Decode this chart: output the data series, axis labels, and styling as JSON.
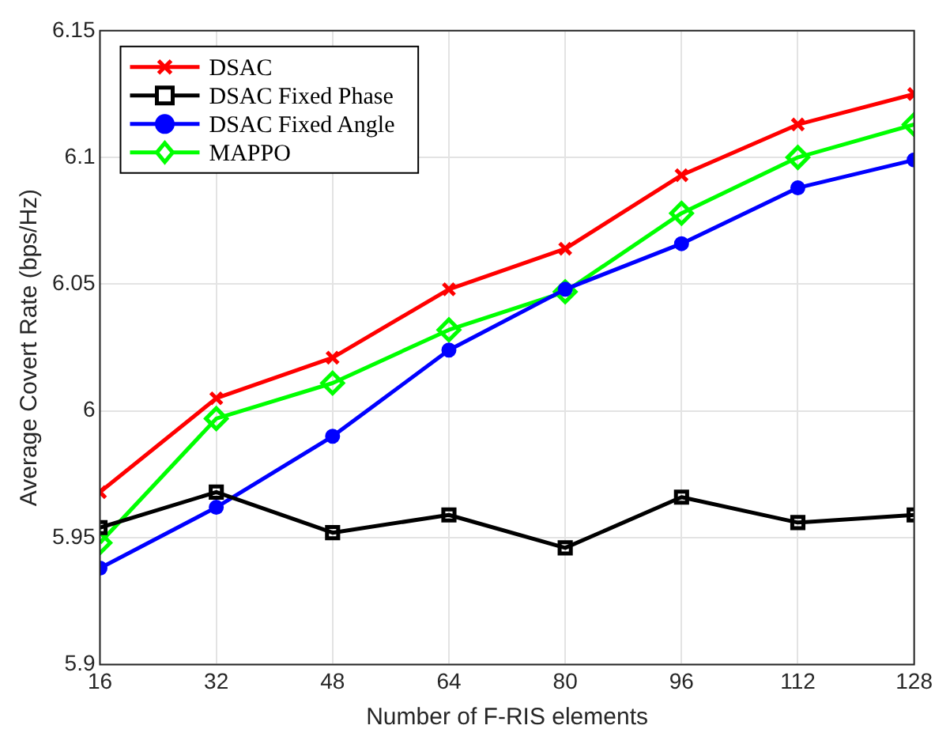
{
  "chart_data": {
    "type": "line",
    "xlabel": "Number of F-RIS elements",
    "ylabel": "Average Covert Rate (bps/Hz)",
    "x": [
      16,
      32,
      48,
      64,
      80,
      96,
      112,
      128
    ],
    "xlim": [
      16,
      128
    ],
    "xticks": [
      16,
      32,
      48,
      64,
      80,
      96,
      112,
      128
    ],
    "ylim": [
      5.9,
      6.15
    ],
    "yticks": [
      5.9,
      5.95,
      6,
      6.05,
      6.1,
      6.15
    ],
    "grid": true,
    "legend": "top left",
    "series": [
      {
        "name": "DSAC",
        "color": "#ff0000",
        "marker": "cross",
        "values": [
          5.968,
          6.005,
          6.021,
          6.048,
          6.064,
          6.093,
          6.113,
          6.125
        ]
      },
      {
        "name": "DSAC Fixed Phase",
        "color": "#000000",
        "marker": "square",
        "values": [
          5.954,
          5.968,
          5.952,
          5.959,
          5.946,
          5.966,
          5.956,
          5.959
        ]
      },
      {
        "name": "DSAC Fixed Angle",
        "color": "#0000ff",
        "marker": "circle",
        "values": [
          5.938,
          5.962,
          5.99,
          6.024,
          6.048,
          6.066,
          6.088,
          6.099
        ]
      },
      {
        "name": "MAPPO",
        "color": "#00ff00",
        "marker": "diamond",
        "values": [
          5.948,
          5.997,
          6.011,
          6.032,
          6.047,
          6.078,
          6.1,
          6.113
        ]
      }
    ]
  }
}
